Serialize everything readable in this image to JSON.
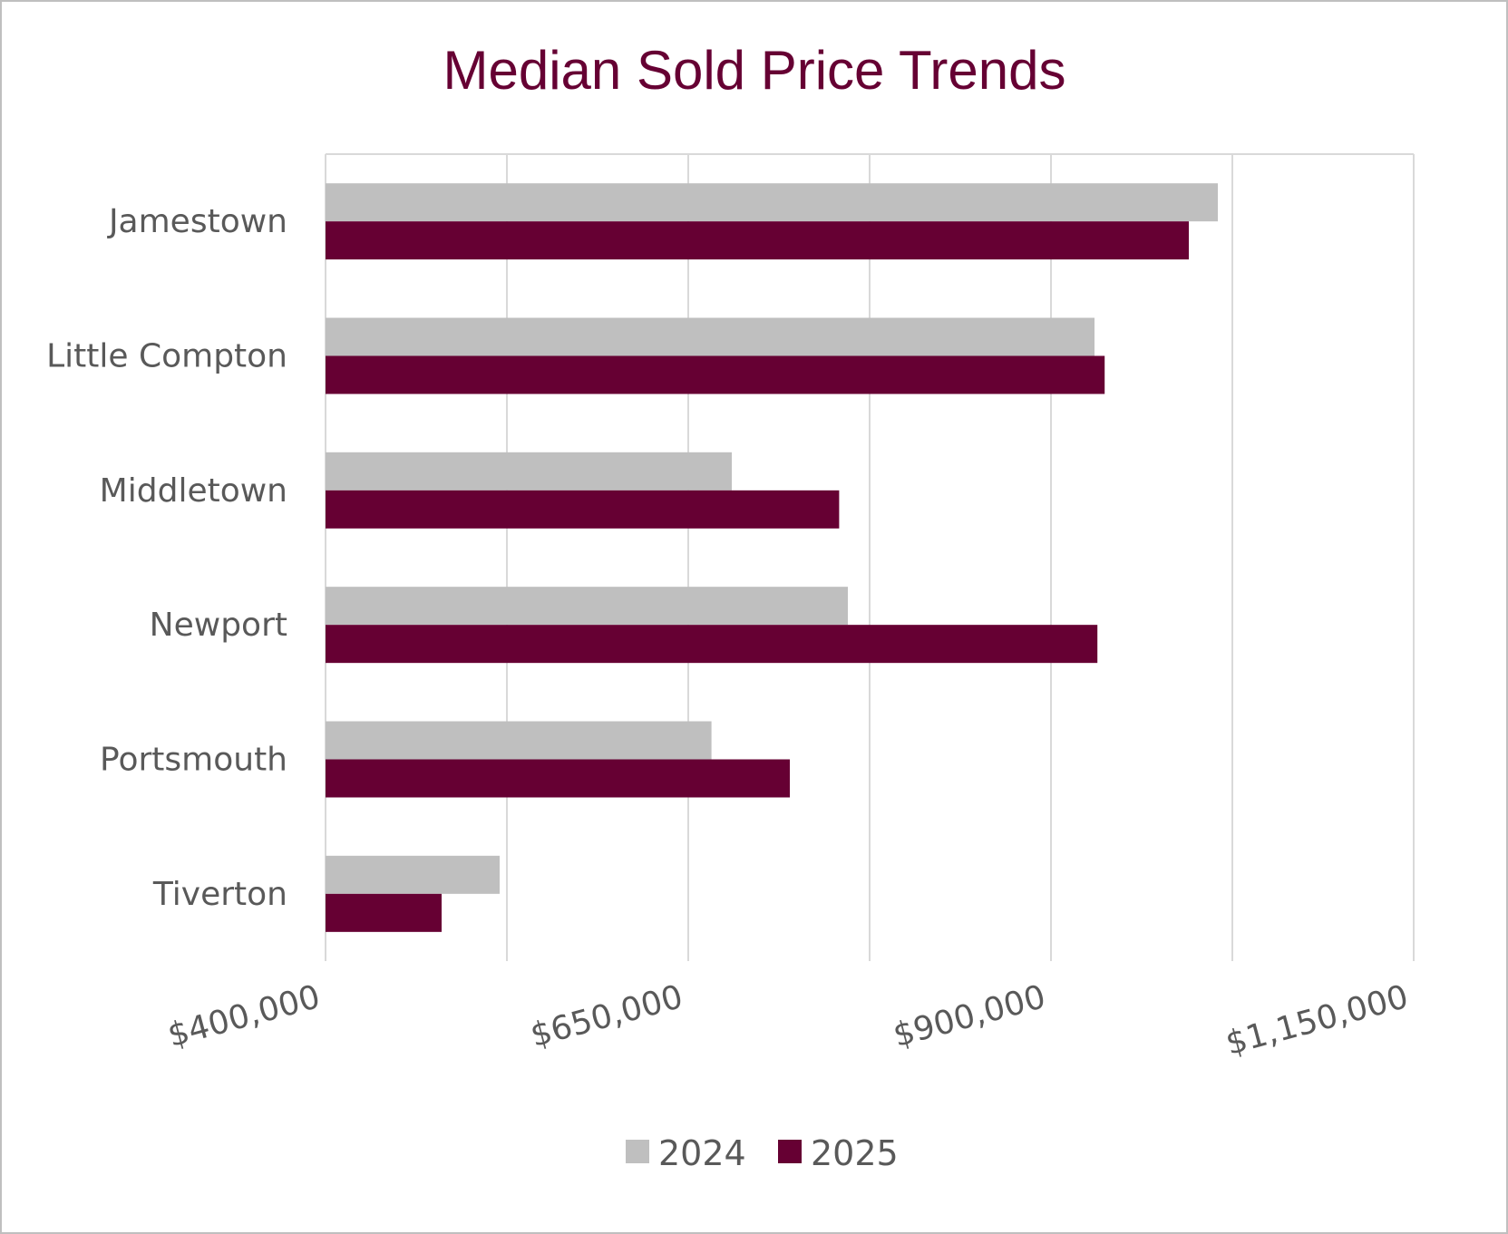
{
  "chart_data": {
    "type": "bar",
    "orientation": "horizontal",
    "title": "Median Sold Price Trends",
    "categories": [
      "Jamestown",
      "Little Compton",
      "Middletown",
      "Newport",
      "Portsmouth",
      "Tiverton"
    ],
    "series": [
      {
        "name": "2024",
        "color": "#bfbfbf",
        "values": [
          1015000,
          930000,
          680000,
          760000,
          666000,
          520000
        ]
      },
      {
        "name": "2025",
        "color": "#660033",
        "values": [
          995000,
          937000,
          754000,
          932000,
          720000,
          480000
        ]
      }
    ],
    "xlim": [
      400000,
      1150000
    ],
    "x_ticks": [
      {
        "value": 400000,
        "label": "$400,000"
      },
      {
        "value": 650000,
        "label": "$650,000"
      },
      {
        "value": 900000,
        "label": "$900,000"
      },
      {
        "value": 1150000,
        "label": "$1,150,000"
      }
    ],
    "gridlines": [
      400000,
      525000,
      650000,
      775000,
      900000,
      1025000,
      1150000
    ],
    "grid": true,
    "legend_position": "bottom",
    "title_color": "#660033"
  }
}
